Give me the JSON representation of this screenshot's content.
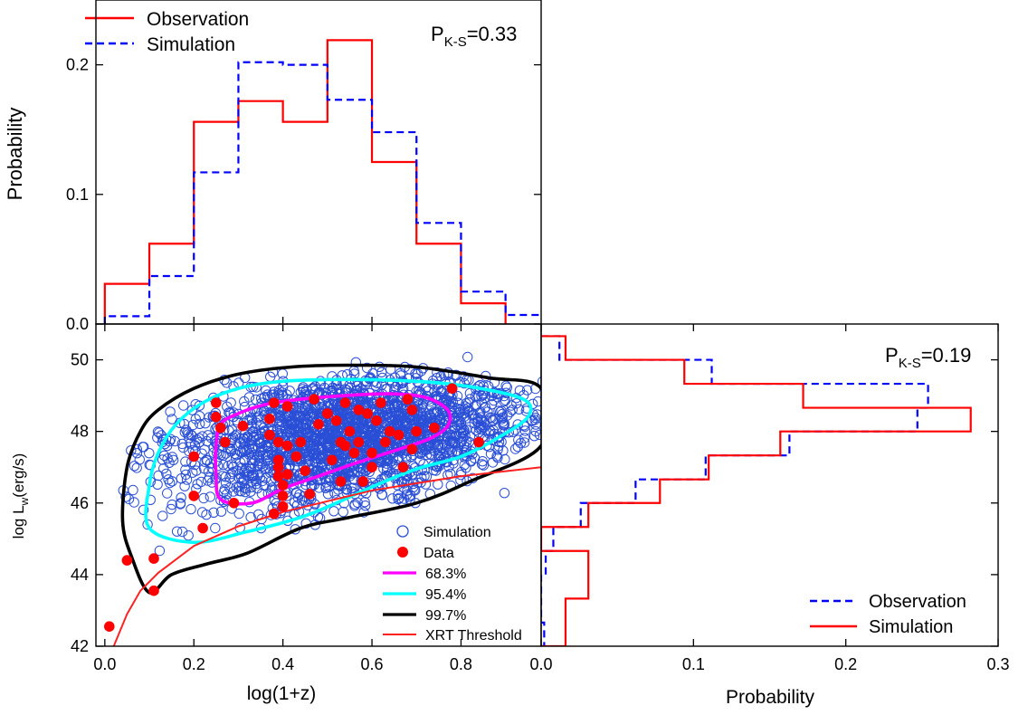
{
  "colors": {
    "observation_top": "#ff0000",
    "simulation_top": "#0000ff",
    "simulation_points": "#2a4fd6",
    "data_points": "#ff0000",
    "contour_68": "#ff00ff",
    "contour_95": "#00ffff",
    "contour_99": "#000000",
    "threshold": "#ff2020"
  },
  "chart_data": [
    {
      "type": "line",
      "panel": "top-histogram",
      "style": "step",
      "xlabel": "",
      "ylabel": "Probability",
      "xlim": [
        -0.02,
        0.98
      ],
      "ylim": [
        0.0,
        0.25
      ],
      "y_ticks": [
        "0.0",
        "0.1",
        "0.2"
      ],
      "annotation": {
        "prefix": "P",
        "sub": "K-S",
        "suffix": "=0.33"
      },
      "legend": {
        "position": "top-left",
        "entries": [
          "Observation",
          "Simulation"
        ]
      },
      "series": [
        {
          "name": "Observation",
          "bin_edges": [
            0.0,
            0.1,
            0.2,
            0.3,
            0.4,
            0.5,
            0.6,
            0.7,
            0.8,
            0.9
          ],
          "values": [
            0.031,
            0.062,
            0.156,
            0.172,
            0.156,
            0.219,
            0.125,
            0.062,
            0.016
          ]
        },
        {
          "name": "Simulation",
          "bin_edges": [
            0.0,
            0.1,
            0.2,
            0.3,
            0.4,
            0.5,
            0.6,
            0.7,
            0.8,
            0.9,
            1.0
          ],
          "values": [
            0.006,
            0.037,
            0.117,
            0.202,
            0.2,
            0.173,
            0.148,
            0.078,
            0.025,
            0.007
          ]
        }
      ]
    },
    {
      "type": "scatter",
      "panel": "main",
      "xlabel": "log(1+z)",
      "ylabel_prefix": "log L",
      "ylabel_sub": "w",
      "ylabel_suffix": "(erg/s)",
      "xlim": [
        -0.02,
        0.98
      ],
      "ylim": [
        42,
        51
      ],
      "x_ticks": [
        "0.0",
        "0.2",
        "0.4",
        "0.6",
        "0.8"
      ],
      "y_ticks": [
        "42",
        "44",
        "46",
        "48",
        "50"
      ],
      "legend": {
        "position": "bottom-right",
        "entries": [
          "Simulation",
          "Data",
          "68.3%",
          "95.4%",
          "99.7%",
          "XRT Threshold"
        ]
      },
      "data_points": [
        [
          0.01,
          42.55
        ],
        [
          0.05,
          44.4
        ],
        [
          0.11,
          44.45
        ],
        [
          0.11,
          43.55
        ],
        [
          0.2,
          47.3
        ],
        [
          0.2,
          46.2
        ],
        [
          0.22,
          45.3
        ],
        [
          0.25,
          48.8
        ],
        [
          0.25,
          48.4
        ],
        [
          0.26,
          48.1
        ],
        [
          0.27,
          47.7
        ],
        [
          0.29,
          46.0
        ],
        [
          0.31,
          48.15
        ],
        [
          0.37,
          47.9
        ],
        [
          0.37,
          48.35
        ],
        [
          0.38,
          48.8
        ],
        [
          0.38,
          45.7
        ],
        [
          0.39,
          47.7
        ],
        [
          0.39,
          47.2
        ],
        [
          0.39,
          47.0
        ],
        [
          0.39,
          46.75
        ],
        [
          0.4,
          46.5
        ],
        [
          0.4,
          46.2
        ],
        [
          0.4,
          45.9
        ],
        [
          0.41,
          48.7
        ],
        [
          0.41,
          47.6
        ],
        [
          0.41,
          46.8
        ],
        [
          0.43,
          47.3
        ],
        [
          0.44,
          47.7
        ],
        [
          0.45,
          46.9
        ],
        [
          0.46,
          46.25
        ],
        [
          0.47,
          48.9
        ],
        [
          0.48,
          48.2
        ],
        [
          0.5,
          48.5
        ],
        [
          0.51,
          47.2
        ],
        [
          0.52,
          48.3
        ],
        [
          0.53,
          47.7
        ],
        [
          0.53,
          46.6
        ],
        [
          0.54,
          48.8
        ],
        [
          0.54,
          47.6
        ],
        [
          0.55,
          48.0
        ],
        [
          0.56,
          47.4
        ],
        [
          0.57,
          48.6
        ],
        [
          0.57,
          47.7
        ],
        [
          0.58,
          46.6
        ],
        [
          0.59,
          48.5
        ],
        [
          0.6,
          47.4
        ],
        [
          0.6,
          47.0
        ],
        [
          0.61,
          48.3
        ],
        [
          0.62,
          48.8
        ],
        [
          0.63,
          47.7
        ],
        [
          0.64,
          48.0
        ],
        [
          0.66,
          47.9
        ],
        [
          0.67,
          47.0
        ],
        [
          0.68,
          48.9
        ],
        [
          0.69,
          48.6
        ],
        [
          0.69,
          47.5
        ],
        [
          0.7,
          48.0
        ],
        [
          0.74,
          48.1
        ],
        [
          0.78,
          49.2
        ],
        [
          0.84,
          47.7
        ]
      ],
      "contours": [
        {
          "level": "68.3%",
          "points": [
            [
              0.26,
              46.1
            ],
            [
              0.33,
              46.0
            ],
            [
              0.4,
              46.4
            ],
            [
              0.48,
              46.75
            ],
            [
              0.56,
              47.1
            ],
            [
              0.66,
              47.5
            ],
            [
              0.73,
              47.8
            ],
            [
              0.77,
              48.15
            ],
            [
              0.77,
              48.6
            ],
            [
              0.72,
              48.95
            ],
            [
              0.64,
              49.05
            ],
            [
              0.54,
              49.0
            ],
            [
              0.44,
              48.9
            ],
            [
              0.36,
              48.75
            ],
            [
              0.3,
              48.5
            ],
            [
              0.26,
              48.2
            ],
            [
              0.25,
              47.6
            ],
            [
              0.25,
              46.8
            ]
          ]
        },
        {
          "level": "95.4%",
          "points": [
            [
              0.1,
              45.3
            ],
            [
              0.2,
              44.9
            ],
            [
              0.32,
              45.2
            ],
            [
              0.44,
              45.6
            ],
            [
              0.52,
              46.0
            ],
            [
              0.6,
              46.45
            ],
            [
              0.7,
              46.95
            ],
            [
              0.8,
              47.3
            ],
            [
              0.88,
              47.8
            ],
            [
              0.95,
              48.4
            ],
            [
              0.94,
              48.9
            ],
            [
              0.82,
              49.25
            ],
            [
              0.7,
              49.4
            ],
            [
              0.55,
              49.45
            ],
            [
              0.4,
              49.4
            ],
            [
              0.3,
              49.2
            ],
            [
              0.22,
              48.8
            ],
            [
              0.16,
              48.2
            ],
            [
              0.12,
              47.4
            ],
            [
              0.1,
              46.5
            ]
          ]
        },
        {
          "level": "99.7%",
          "points": [
            [
              0.1,
              43.5
            ],
            [
              0.15,
              44.0
            ],
            [
              0.23,
              44.3
            ],
            [
              0.32,
              44.6
            ],
            [
              0.44,
              45.3
            ],
            [
              0.55,
              45.6
            ],
            [
              0.7,
              46.0
            ],
            [
              0.82,
              46.6
            ],
            [
              0.98,
              47.6
            ],
            [
              0.98,
              49.2
            ],
            [
              0.86,
              49.5
            ],
            [
              0.7,
              49.8
            ],
            [
              0.55,
              49.85
            ],
            [
              0.42,
              49.8
            ],
            [
              0.3,
              49.6
            ],
            [
              0.2,
              49.2
            ],
            [
              0.12,
              48.6
            ],
            [
              0.08,
              48.0
            ],
            [
              0.05,
              47.0
            ],
            [
              0.04,
              45.5
            ],
            [
              0.06,
              44.5
            ]
          ]
        }
      ],
      "threshold": [
        [
          0.02,
          42.0
        ],
        [
          0.05,
          42.9
        ],
        [
          0.08,
          43.55
        ],
        [
          0.12,
          44.05
        ],
        [
          0.2,
          44.8
        ],
        [
          0.3,
          45.35
        ],
        [
          0.4,
          45.75
        ],
        [
          0.5,
          46.05
        ],
        [
          0.6,
          46.35
        ],
        [
          0.7,
          46.55
        ],
        [
          0.8,
          46.75
        ],
        [
          0.98,
          47.0
        ]
      ]
    },
    {
      "type": "line",
      "panel": "right-histogram",
      "style": "horizontal-step",
      "xlabel": "Probability",
      "ylabel": "",
      "xlim": [
        0.0,
        0.3
      ],
      "ylim": [
        42,
        51
      ],
      "x_ticks": [
        "0.0",
        "0.1",
        "0.2",
        "0.3"
      ],
      "annotation": {
        "prefix": "P",
        "sub": "K-S",
        "suffix": "=0.19"
      },
      "legend": {
        "position": "bottom-right",
        "entries": [
          "Observation",
          "Simulation"
        ]
      },
      "series": [
        {
          "name": "Observation",
          "bin_edges": [
            42.0,
            42.66,
            43.33,
            44.0,
            44.66,
            45.33,
            46.0,
            46.66,
            47.33,
            48.0,
            48.66,
            49.33,
            50.0,
            50.66
          ],
          "values": [
            0.002,
            0.0,
            0.0,
            0.003,
            0.008,
            0.026,
            0.062,
            0.108,
            0.163,
            0.247,
            0.254,
            0.112,
            0.012
          ]
        },
        {
          "name": "Simulation",
          "bin_edges": [
            42.0,
            42.66,
            43.33,
            44.0,
            44.66,
            45.33,
            46.0,
            46.66,
            47.33,
            48.0,
            48.66,
            49.33,
            50.0,
            50.66
          ],
          "values": [
            0.016,
            0.016,
            0.031,
            0.031,
            0.0,
            0.031,
            0.078,
            0.11,
            0.157,
            0.282,
            0.172,
            0.094,
            0.016
          ]
        }
      ]
    }
  ]
}
